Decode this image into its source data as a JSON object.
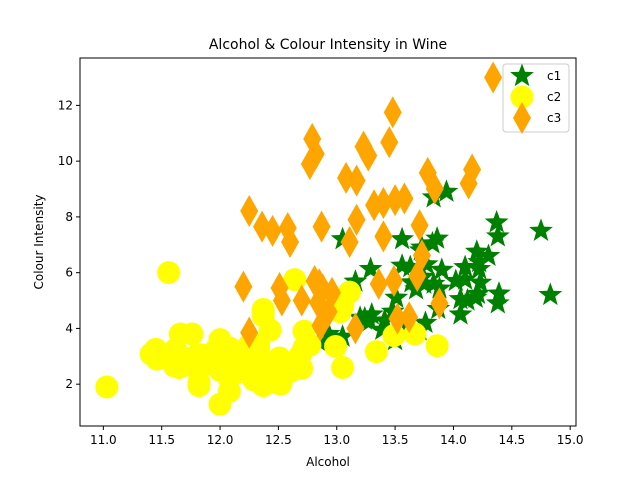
{
  "chart_data": {
    "type": "scatter",
    "title": "Alcohol & Colour Intensity in Wine",
    "xlabel": "Alcohol",
    "ylabel": "Colour Intensity",
    "xlim": [
      10.8,
      15.05
    ],
    "ylim": [
      0.5,
      13.7
    ],
    "xticks": [
      "11.0",
      "11.5",
      "12.0",
      "12.5",
      "13.0",
      "13.5",
      "14.0",
      "14.5",
      "15.0"
    ],
    "yticks": [
      "2",
      "4",
      "6",
      "8",
      "10",
      "12"
    ],
    "grid": false,
    "legend_position": "top-right",
    "series": [
      {
        "name": "c1",
        "marker": "star",
        "color": "#008000",
        "points": [
          [
            14.23,
            5.64
          ],
          [
            13.2,
            4.38
          ],
          [
            13.16,
            5.68
          ],
          [
            14.37,
            7.8
          ],
          [
            13.24,
            4.32
          ],
          [
            14.2,
            6.75
          ],
          [
            14.39,
            5.25
          ],
          [
            14.06,
            5.05
          ],
          [
            14.83,
            5.2
          ],
          [
            13.86,
            7.22
          ],
          [
            14.1,
            5.75
          ],
          [
            14.12,
            5.0
          ],
          [
            13.75,
            5.6
          ],
          [
            14.75,
            7.5
          ],
          [
            14.38,
            7.3
          ],
          [
            13.63,
            6.2
          ],
          [
            14.3,
            6.6
          ],
          [
            13.83,
            8.7
          ],
          [
            14.19,
            5.1
          ],
          [
            13.64,
            5.65
          ],
          [
            14.06,
            4.5
          ],
          [
            12.93,
            3.8
          ],
          [
            13.71,
            3.93
          ],
          [
            12.85,
            3.52
          ],
          [
            13.5,
            3.58
          ],
          [
            13.05,
            4.8
          ],
          [
            13.39,
            3.95
          ],
          [
            13.3,
            4.5
          ],
          [
            13.87,
            4.7
          ],
          [
            14.02,
            5.7
          ],
          [
            13.73,
            6.9
          ],
          [
            13.58,
            3.84
          ],
          [
            13.68,
            5.4
          ],
          [
            13.76,
            4.2
          ],
          [
            13.51,
            5.1
          ],
          [
            13.48,
            4.6
          ],
          [
            13.28,
            4.25
          ],
          [
            13.05,
            3.7
          ],
          [
            13.07,
            5.1
          ],
          [
            14.22,
            6.13
          ],
          [
            13.56,
            7.2
          ],
          [
            13.41,
            4.28
          ],
          [
            13.88,
            5.43
          ],
          [
            13.24,
            4.36
          ],
          [
            13.05,
            5.04
          ],
          [
            14.21,
            5.24
          ],
          [
            14.38,
            4.9
          ],
          [
            13.9,
            6.1
          ],
          [
            14.1,
            6.2
          ],
          [
            13.94,
            8.9
          ],
          [
            13.05,
            7.2
          ],
          [
            13.83,
            5.6
          ],
          [
            13.82,
            7.05
          ],
          [
            13.77,
            6.3
          ],
          [
            13.74,
            5.85
          ],
          [
            13.56,
            6.25
          ],
          [
            14.22,
            6.38
          ],
          [
            13.29,
            6.13
          ],
          [
            13.72,
            6.8
          ]
        ]
      },
      {
        "name": "c2",
        "marker": "circle",
        "color": "#ffff00",
        "points": [
          [
            12.37,
            1.95
          ],
          [
            12.33,
            3.27
          ],
          [
            12.64,
            5.75
          ],
          [
            13.67,
            3.8
          ],
          [
            12.37,
            4.45
          ],
          [
            12.17,
            2.95
          ],
          [
            12.37,
            4.6
          ],
          [
            13.11,
            5.3
          ],
          [
            12.37,
            4.68
          ],
          [
            13.34,
            3.17
          ],
          [
            12.21,
            2.85
          ],
          [
            12.29,
            3.05
          ],
          [
            13.86,
            3.38
          ],
          [
            13.49,
            3.74
          ],
          [
            12.99,
            3.35
          ],
          [
            11.96,
            3.21
          ],
          [
            11.66,
            3.8
          ],
          [
            13.03,
            4.6
          ],
          [
            11.84,
            2.65
          ],
          [
            12.33,
            3.4
          ],
          [
            12.7,
            2.57
          ],
          [
            12.0,
            2.5
          ],
          [
            12.72,
            3.9
          ],
          [
            12.08,
            2.2
          ],
          [
            13.05,
            4.8
          ],
          [
            11.84,
            3.05
          ],
          [
            12.67,
            2.62
          ],
          [
            12.16,
            2.45
          ],
          [
            11.65,
            2.6
          ],
          [
            11.64,
            2.8
          ],
          [
            12.08,
            1.74
          ],
          [
            12.08,
            2.4
          ],
          [
            12.0,
            3.6
          ],
          [
            12.69,
            3.05
          ],
          [
            12.29,
            2.15
          ],
          [
            11.62,
            3.25
          ],
          [
            12.47,
            2.6
          ],
          [
            11.81,
            2.5
          ],
          [
            12.29,
            2.9
          ],
          [
            12.37,
            4.5
          ],
          [
            12.29,
            2.3
          ],
          [
            12.08,
            3.3
          ],
          [
            12.6,
            2.45
          ],
          [
            12.34,
            2.8
          ],
          [
            11.82,
            2.06
          ],
          [
            12.51,
            2.94
          ],
          [
            12.42,
            2.7
          ],
          [
            12.25,
            3.4
          ],
          [
            12.72,
            3.3
          ],
          [
            12.22,
            2.7
          ],
          [
            11.61,
            2.65
          ],
          [
            11.46,
            2.9
          ],
          [
            12.52,
            2.0
          ],
          [
            11.76,
            3.8
          ],
          [
            11.41,
            3.08
          ],
          [
            12.08,
            2.9
          ],
          [
            11.03,
            1.9
          ],
          [
            11.82,
            1.95
          ],
          [
            12.42,
            2.06
          ],
          [
            12.77,
            3.4
          ],
          [
            12.0,
            1.28
          ],
          [
            11.45,
            3.25
          ],
          [
            11.56,
            6.0
          ],
          [
            12.42,
            2.08
          ],
          [
            13.05,
            2.6
          ],
          [
            11.87,
            2.8
          ],
          [
            12.07,
            2.76
          ],
          [
            12.43,
            3.94
          ],
          [
            11.79,
            3.0
          ],
          [
            12.37,
            2.12
          ],
          [
            12.04,
            2.6
          ]
        ]
      },
      {
        "name": "c3",
        "marker": "diamond",
        "color": "#ffa500",
        "points": [
          [
            12.86,
            4.1
          ],
          [
            12.88,
            5.4
          ],
          [
            12.81,
            5.7
          ],
          [
            12.7,
            5.0
          ],
          [
            12.51,
            5.45
          ],
          [
            12.6,
            7.1
          ],
          [
            12.25,
            3.85
          ],
          [
            12.53,
            5.0
          ],
          [
            13.49,
            5.7
          ],
          [
            12.84,
            4.92
          ],
          [
            12.93,
            4.6
          ],
          [
            13.36,
            5.6
          ],
          [
            13.52,
            4.35
          ],
          [
            13.62,
            4.4
          ],
          [
            12.25,
            8.21
          ],
          [
            13.16,
            4.0
          ],
          [
            13.88,
            4.9
          ],
          [
            12.87,
            7.65
          ],
          [
            13.32,
            8.42
          ],
          [
            13.08,
            9.4
          ],
          [
            13.5,
            8.6
          ],
          [
            12.79,
            10.8
          ],
          [
            13.11,
            7.1
          ],
          [
            13.23,
            10.52
          ],
          [
            12.58,
            7.6
          ],
          [
            13.17,
            7.9
          ],
          [
            13.84,
            9.01
          ],
          [
            12.45,
            7.5
          ],
          [
            14.34,
            13.0
          ],
          [
            13.48,
            11.75
          ],
          [
            12.36,
            7.65
          ],
          [
            13.69,
            5.88
          ],
          [
            12.85,
            5.58
          ],
          [
            12.96,
            5.28
          ],
          [
            13.78,
            9.58
          ],
          [
            13.73,
            6.62
          ],
          [
            13.45,
            10.68
          ],
          [
            12.82,
            10.26
          ],
          [
            13.58,
            8.66
          ],
          [
            13.4,
            8.5
          ],
          [
            12.2,
            5.5
          ],
          [
            12.77,
            9.899999
          ],
          [
            14.16,
            9.7
          ],
          [
            13.71,
            7.7
          ],
          [
            13.4,
            7.3
          ],
          [
            13.27,
            10.2
          ],
          [
            13.17,
            9.3
          ],
          [
            14.13,
            9.2
          ]
        ]
      }
    ]
  }
}
